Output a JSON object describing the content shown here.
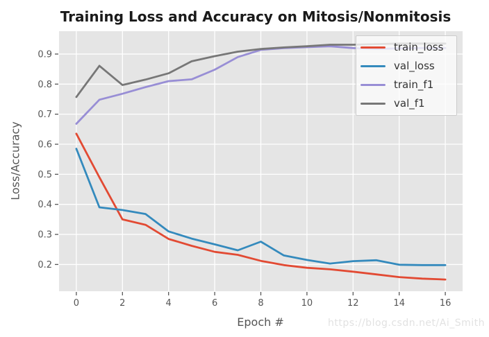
{
  "watermark": "https://blog.csdn.net/Ai_Smith",
  "chart_data": {
    "type": "line",
    "title": "Training Loss and Accuracy on Mitosis/Nonmitosis",
    "xlabel": "Epoch #",
    "ylabel": "Loss/Accuracy",
    "x": [
      0,
      1,
      2,
      3,
      4,
      5,
      6,
      7,
      8,
      9,
      10,
      11,
      12,
      13,
      14,
      15,
      16
    ],
    "series": [
      {
        "name": "train_loss",
        "color": "#E24A33",
        "values": [
          0.635,
          0.49,
          0.35,
          0.332,
          0.285,
          0.262,
          0.242,
          0.232,
          0.212,
          0.198,
          0.189,
          0.184,
          0.176,
          0.167,
          0.158,
          0.153,
          0.15
        ]
      },
      {
        "name": "val_loss",
        "color": "#348ABD",
        "values": [
          0.585,
          0.39,
          0.381,
          0.368,
          0.31,
          0.286,
          0.267,
          0.247,
          0.276,
          0.23,
          0.215,
          0.203,
          0.211,
          0.214,
          0.199,
          0.198,
          0.198
        ]
      },
      {
        "name": "train_f1",
        "color": "#988ED5",
        "values": [
          0.668,
          0.748,
          0.768,
          0.79,
          0.81,
          0.816,
          0.848,
          0.89,
          0.914,
          0.92,
          0.923,
          0.926,
          0.92,
          0.917,
          0.919,
          0.92,
          0.92
        ]
      },
      {
        "name": "val_f1",
        "color": "#777777",
        "values": [
          0.757,
          0.861,
          0.797,
          0.815,
          0.836,
          0.876,
          0.893,
          0.908,
          0.917,
          0.922,
          0.926,
          0.931,
          0.931,
          0.933,
          0.935,
          0.935,
          0.935
        ]
      }
    ],
    "xticks": [
      0,
      2,
      4,
      6,
      8,
      10,
      12,
      14,
      16
    ],
    "yticks": [
      0.2,
      0.3,
      0.4,
      0.5,
      0.6,
      0.7,
      0.8,
      0.9
    ],
    "xlim": [
      -0.75,
      16.75
    ],
    "ylim": [
      0.111,
      0.976
    ],
    "grid": true,
    "legend_position": "upper right",
    "style": {
      "plot_bg": "#e5e5e5",
      "grid_color": "#ffffff",
      "tick_color": "#555555"
    }
  }
}
